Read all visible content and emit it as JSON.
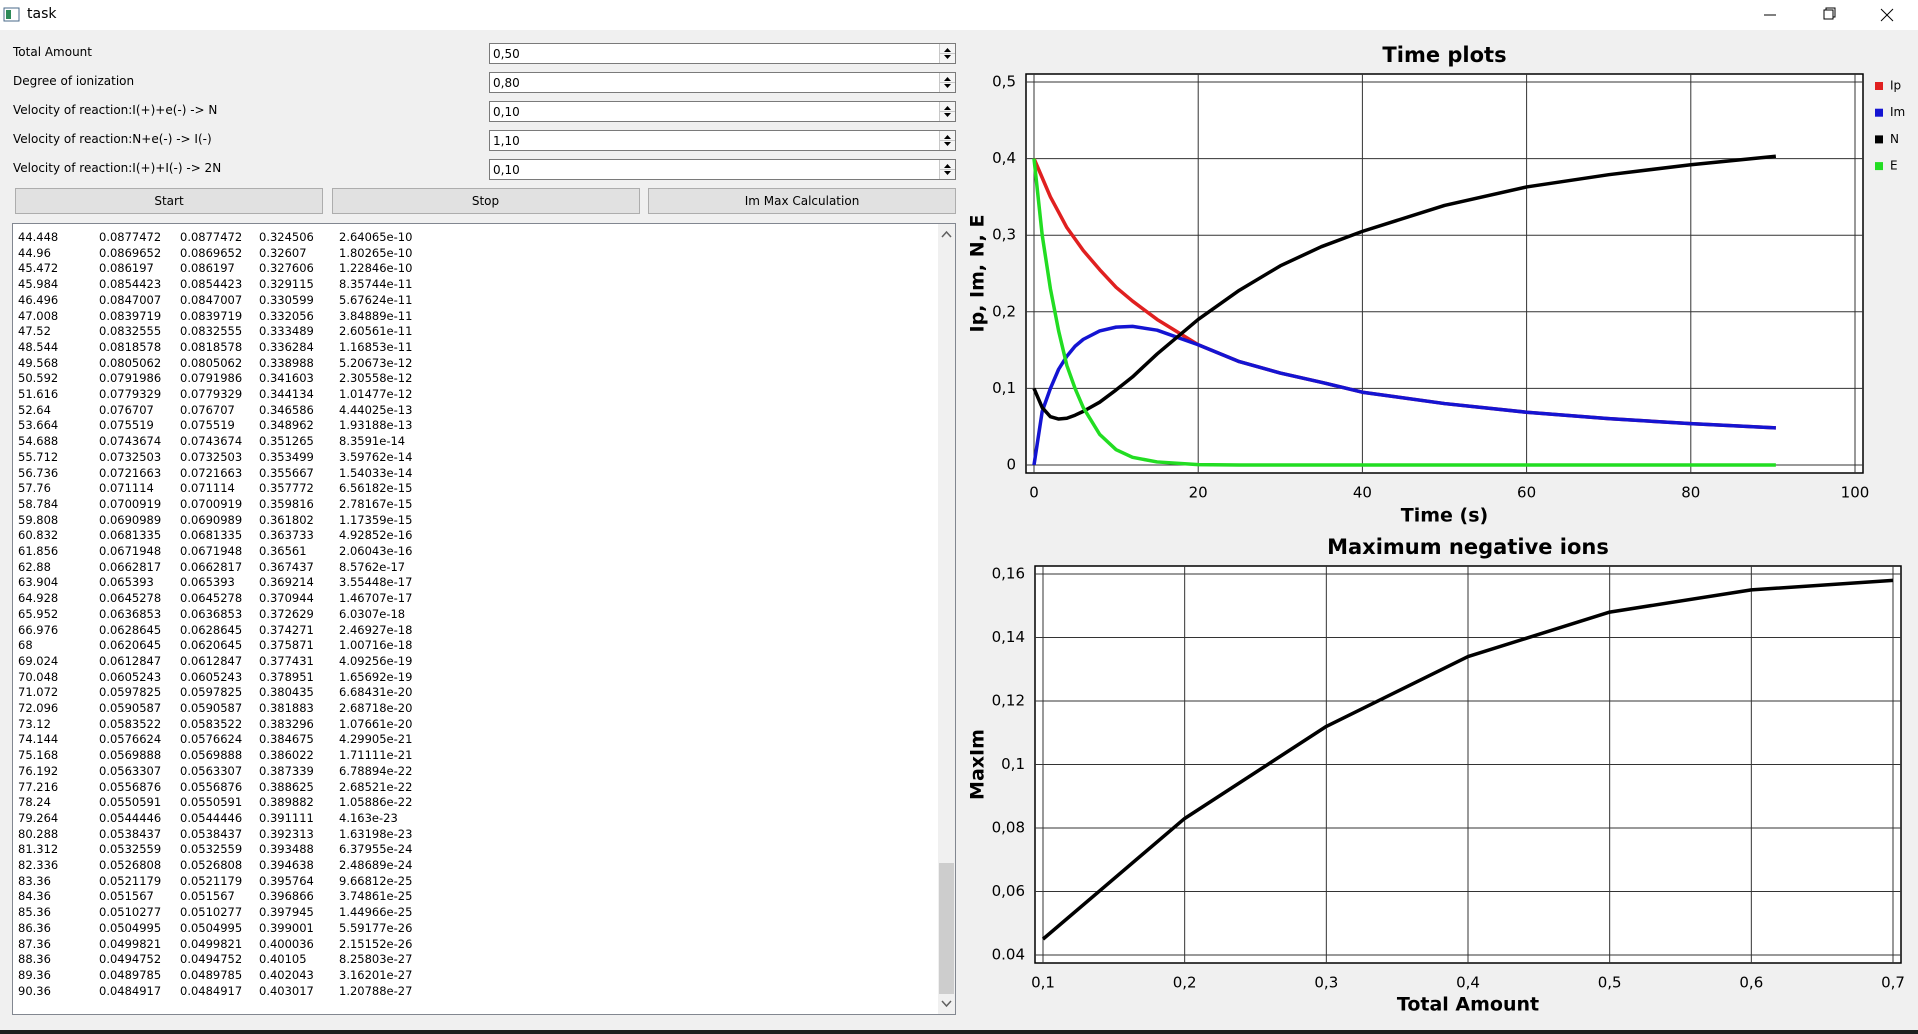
{
  "window": {
    "title": "task"
  },
  "form": {
    "fields": [
      {
        "label": "Total Amount",
        "value": "0,50"
      },
      {
        "label": "Degree of ionization",
        "value": "0,80"
      },
      {
        "label": "Velocity of reaction:I(+)+e(-) -> N",
        "value": "0,10"
      },
      {
        "label": "Velocity of reaction:N+e(-) -> I(-)",
        "value": "1,10"
      },
      {
        "label": "Velocity of reaction:I(+)+I(-) -> 2N",
        "value": "0,10"
      }
    ]
  },
  "buttons": [
    "Start",
    "Stop",
    "Im Max Calculation"
  ],
  "log": {
    "rows": [
      [
        "44.448",
        "0.0877472",
        "0.0877472",
        "0.324506",
        "2.64065e-10"
      ],
      [
        "44.96",
        "0.0869652",
        "0.0869652",
        "0.32607",
        "1.80265e-10"
      ],
      [
        "45.472",
        "0.086197",
        "0.086197",
        "0.327606",
        "1.22846e-10"
      ],
      [
        "45.984",
        "0.0854423",
        "0.0854423",
        "0.329115",
        "8.35744e-11"
      ],
      [
        "46.496",
        "0.0847007",
        "0.0847007",
        "0.330599",
        "5.67624e-11"
      ],
      [
        "47.008",
        "0.0839719",
        "0.0839719",
        "0.332056",
        "3.84889e-11"
      ],
      [
        "47.52",
        "0.0832555",
        "0.0832555",
        "0.333489",
        "2.60561e-11"
      ],
      [
        "48.544",
        "0.0818578",
        "0.0818578",
        "0.336284",
        "1.16853e-11"
      ],
      [
        "49.568",
        "0.0805062",
        "0.0805062",
        "0.338988",
        "5.20673e-12"
      ],
      [
        "50.592",
        "0.0791986",
        "0.0791986",
        "0.341603",
        "2.30558e-12"
      ],
      [
        "51.616",
        "0.0779329",
        "0.0779329",
        "0.344134",
        "1.01477e-12"
      ],
      [
        "52.64",
        "0.076707",
        "0.076707",
        "0.346586",
        "4.44025e-13"
      ],
      [
        "53.664",
        "0.075519",
        "0.075519",
        "0.348962",
        "1.93188e-13"
      ],
      [
        "54.688",
        "0.0743674",
        "0.0743674",
        "0.351265",
        "8.3591e-14"
      ],
      [
        "55.712",
        "0.0732503",
        "0.0732503",
        "0.353499",
        "3.59762e-14"
      ],
      [
        "56.736",
        "0.0721663",
        "0.0721663",
        "0.355667",
        "1.54033e-14"
      ],
      [
        "57.76",
        "0.071114",
        "0.071114",
        "0.357772",
        "6.56182e-15"
      ],
      [
        "58.784",
        "0.0700919",
        "0.0700919",
        "0.359816",
        "2.78167e-15"
      ],
      [
        "59.808",
        "0.0690989",
        "0.0690989",
        "0.361802",
        "1.17359e-15"
      ],
      [
        "60.832",
        "0.0681335",
        "0.0681335",
        "0.363733",
        "4.92852e-16"
      ],
      [
        "61.856",
        "0.0671948",
        "0.0671948",
        "0.36561",
        "2.06043e-16"
      ],
      [
        "62.88",
        "0.0662817",
        "0.0662817",
        "0.367437",
        "8.5762e-17"
      ],
      [
        "63.904",
        "0.065393",
        "0.065393",
        "0.369214",
        "3.55448e-17"
      ],
      [
        "64.928",
        "0.0645278",
        "0.0645278",
        "0.370944",
        "1.46707e-17"
      ],
      [
        "65.952",
        "0.0636853",
        "0.0636853",
        "0.372629",
        "6.0307e-18"
      ],
      [
        "66.976",
        "0.0628645",
        "0.0628645",
        "0.374271",
        "2.46927e-18"
      ],
      [
        "68",
        "0.0620645",
        "0.0620645",
        "0.375871",
        "1.00716e-18"
      ],
      [
        "69.024",
        "0.0612847",
        "0.0612847",
        "0.377431",
        "4.09256e-19"
      ],
      [
        "70.048",
        "0.0605243",
        "0.0605243",
        "0.378951",
        "1.65692e-19"
      ],
      [
        "71.072",
        "0.0597825",
        "0.0597825",
        "0.380435",
        "6.68431e-20"
      ],
      [
        "72.096",
        "0.0590587",
        "0.0590587",
        "0.381883",
        "2.68718e-20"
      ],
      [
        "73.12",
        "0.0583522",
        "0.0583522",
        "0.383296",
        "1.07661e-20"
      ],
      [
        "74.144",
        "0.0576624",
        "0.0576624",
        "0.384675",
        "4.29905e-21"
      ],
      [
        "75.168",
        "0.0569888",
        "0.0569888",
        "0.386022",
        "1.71111e-21"
      ],
      [
        "76.192",
        "0.0563307",
        "0.0563307",
        "0.387339",
        "6.78894e-22"
      ],
      [
        "77.216",
        "0.0556876",
        "0.0556876",
        "0.388625",
        "2.68521e-22"
      ],
      [
        "78.24",
        "0.0550591",
        "0.0550591",
        "0.389882",
        "1.05886e-22"
      ],
      [
        "79.264",
        "0.0544446",
        "0.0544446",
        "0.391111",
        "4.163e-23"
      ],
      [
        "80.288",
        "0.0538437",
        "0.0538437",
        "0.392313",
        "1.63198e-23"
      ],
      [
        "81.312",
        "0.0532559",
        "0.0532559",
        "0.393488",
        "6.37955e-24"
      ],
      [
        "82.336",
        "0.0526808",
        "0.0526808",
        "0.394638",
        "2.48689e-24"
      ],
      [
        "83.36",
        "0.0521179",
        "0.0521179",
        "0.395764",
        "9.66812e-25"
      ],
      [
        "84.36",
        "0.051567",
        "0.051567",
        "0.396866",
        "3.74861e-25"
      ],
      [
        "85.36",
        "0.0510277",
        "0.0510277",
        "0.397945",
        "1.44966e-25"
      ],
      [
        "86.36",
        "0.0504995",
        "0.0504995",
        "0.399001",
        "5.59177e-26"
      ],
      [
        "87.36",
        "0.0499821",
        "0.0499821",
        "0.400036",
        "2.15152e-26"
      ],
      [
        "88.36",
        "0.0494752",
        "0.0494752",
        "0.40105",
        "8.25803e-27"
      ],
      [
        "89.36",
        "0.0489785",
        "0.0489785",
        "0.402043",
        "3.16201e-27"
      ],
      [
        "90.36",
        "0.0484917",
        "0.0484917",
        "0.403017",
        "1.20788e-27"
      ]
    ]
  },
  "chart_data": [
    {
      "type": "line",
      "title": "Time plots",
      "x_label": "Time (s)",
      "y_label": "Ip, Im, N, E",
      "x": [
        0,
        1,
        2,
        3,
        4,
        5,
        6,
        8,
        10,
        12,
        15,
        20,
        25,
        30,
        35,
        40,
        50,
        60,
        70,
        80,
        90.36
      ],
      "series": [
        {
          "name": "Ip",
          "color": "#e02020",
          "values": [
            0.4,
            0.375,
            0.35,
            0.33,
            0.31,
            0.295,
            0.28,
            0.255,
            0.232,
            0.214,
            0.19,
            0.157,
            0.135,
            0.12,
            0.108,
            0.095,
            0.0802,
            0.0689,
            0.0605,
            0.054,
            0.0485
          ]
        },
        {
          "name": "Im",
          "color": "#1414d2",
          "values": [
            0,
            0.07,
            0.1,
            0.125,
            0.142,
            0.155,
            0.164,
            0.175,
            0.18,
            0.181,
            0.176,
            0.157,
            0.135,
            0.12,
            0.108,
            0.095,
            0.0802,
            0.0689,
            0.0605,
            0.054,
            0.0485
          ]
        },
        {
          "name": "N",
          "color": "#000000",
          "values": [
            0.1,
            0.075,
            0.063,
            0.06,
            0.061,
            0.065,
            0.07,
            0.082,
            0.098,
            0.115,
            0.145,
            0.19,
            0.228,
            0.26,
            0.285,
            0.305,
            0.3389,
            0.363,
            0.379,
            0.392,
            0.403
          ]
        },
        {
          "name": "E",
          "color": "#22dd22",
          "values": [
            0.4,
            0.3,
            0.23,
            0.175,
            0.13,
            0.1,
            0.075,
            0.04,
            0.02,
            0.01,
            0.004,
            0.0005,
            0,
            0,
            0,
            0,
            0,
            0,
            0,
            0,
            0
          ]
        }
      ],
      "xlim": [
        0,
        100
      ],
      "xticks": [
        0,
        20,
        40,
        60,
        80,
        100
      ],
      "ylim": [
        0,
        0.5
      ],
      "yticks": [
        0,
        {
          "value": 0.1,
          "label": "0,1"
        },
        {
          "value": 0.2,
          "label": "0,2"
        },
        {
          "value": 0.3,
          "label": "0,3"
        },
        {
          "value": 0.4,
          "label": "0,4"
        },
        {
          "value": 0.5,
          "label": "0,5"
        }
      ],
      "grid": true,
      "legend": "right"
    },
    {
      "type": "line",
      "title": "Maximum negative ions",
      "x_label": "Total Amount",
      "y_label": "MaxIm",
      "x": [
        0.1,
        0.2,
        0.3,
        0.4,
        0.5,
        0.6,
        0.7
      ],
      "series": [
        {
          "color": "#000000",
          "values": [
            0.045,
            0.083,
            0.112,
            0.134,
            0.148,
            0.155,
            0.158
          ]
        }
      ],
      "xlim": [
        0.1,
        0.7
      ],
      "xticks": [
        {
          "value": 0.1,
          "label": "0,1"
        },
        {
          "value": 0.2,
          "label": "0,2"
        },
        {
          "value": 0.3,
          "label": "0,3"
        },
        {
          "value": 0.4,
          "label": "0,4"
        },
        {
          "value": 0.5,
          "label": "0,5"
        },
        {
          "value": 0.6,
          "label": "0,6"
        },
        {
          "value": 0.7,
          "label": "0,7"
        }
      ],
      "ylim": [
        0.04,
        0.16
      ],
      "yticks": [
        {
          "value": 0.04,
          "label": "0.04"
        },
        {
          "value": 0.06,
          "label": "0,06"
        },
        {
          "value": 0.08,
          "label": "0,08"
        },
        {
          "value": 0.1,
          "label": "0,1"
        },
        {
          "value": 0.12,
          "label": "0,12"
        },
        {
          "value": 0.14,
          "label": "0,14"
        },
        {
          "value": 0.16,
          "label": "0,16"
        }
      ],
      "grid": true
    }
  ]
}
